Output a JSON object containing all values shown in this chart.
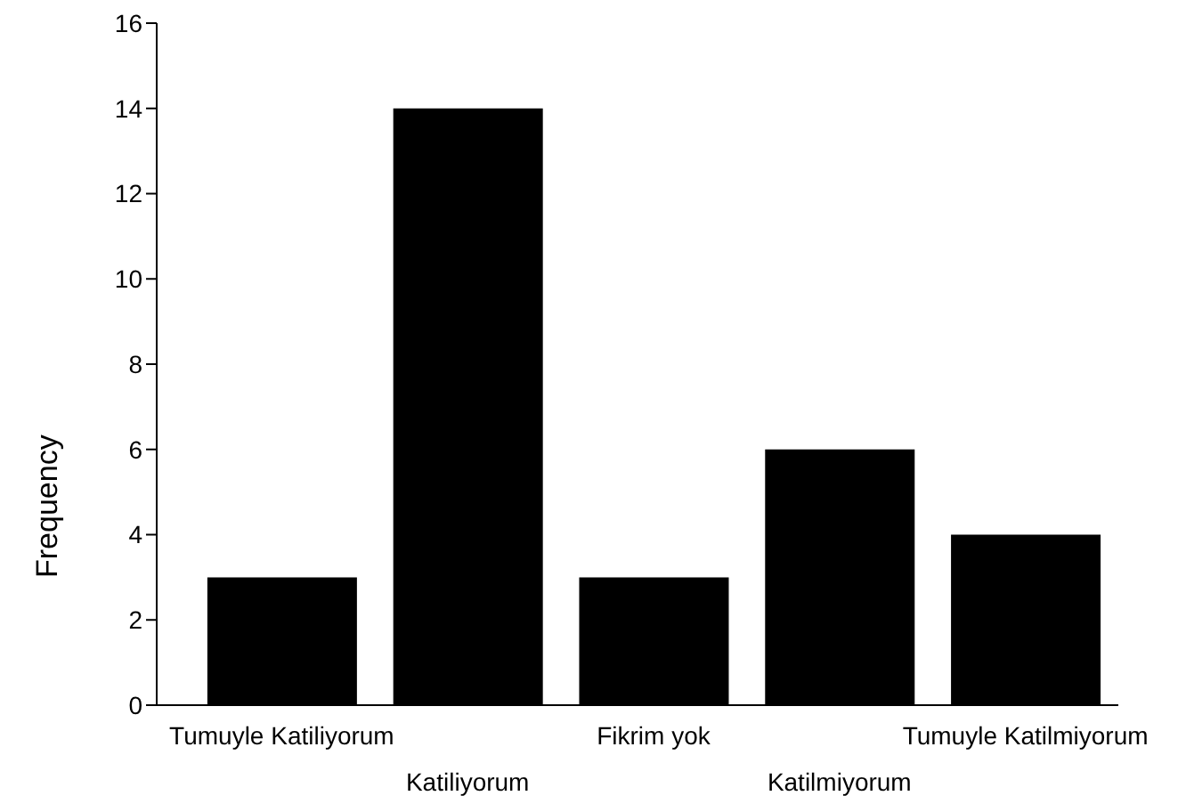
{
  "chart_data": {
    "type": "bar",
    "categories": [
      "Tumuyle Katiliyorum",
      "Katiliyorum",
      "Fikrim yok",
      "Katilmiyorum",
      "Tumuyle Katilmiyorum"
    ],
    "values": [
      3,
      14,
      3,
      6,
      4
    ],
    "color": "#000000",
    "ylabel": "Frequency",
    "ylim": [
      0,
      16
    ],
    "yticks": [
      0,
      2,
      4,
      6,
      8,
      10,
      12,
      14,
      16
    ],
    "grid": false,
    "legend": false
  }
}
